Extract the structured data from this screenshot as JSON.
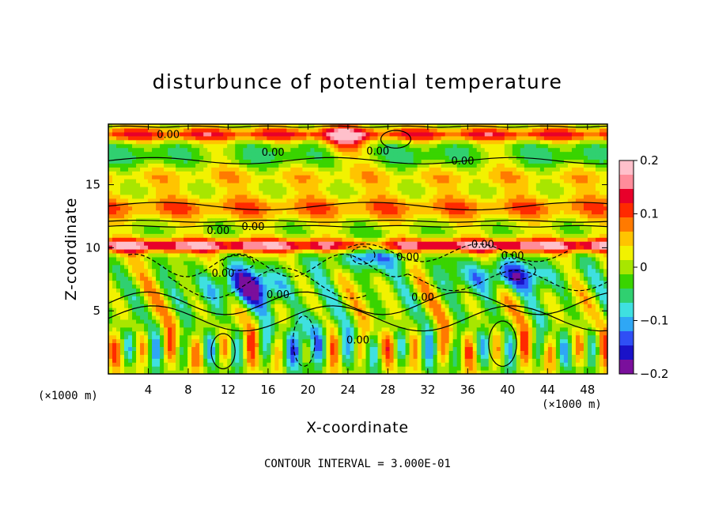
{
  "chart_data": {
    "type": "heatmap",
    "title": "disturbunce of potential temperature",
    "xlabel": "X-coordinate",
    "ylabel": "Z-coordinate",
    "x_unit": "(×1000 m)",
    "y_unit": "(×1000 m)",
    "xlim": [
      0,
      50
    ],
    "ylim": [
      0,
      19.8
    ],
    "x_ticks": [
      4,
      8,
      12,
      16,
      20,
      24,
      28,
      32,
      36,
      40,
      44,
      48
    ],
    "y_ticks": [
      5,
      10,
      15
    ],
    "colorbar": {
      "range": [
        -0.2,
        0.2
      ],
      "ticks": [
        {
          "value": 0.2,
          "label": "0.2"
        },
        {
          "value": 0.1,
          "label": "0.1"
        },
        {
          "value": 0,
          "label": "0"
        },
        {
          "value": -0.1,
          "label": "−0.1"
        },
        {
          "value": -0.2,
          "label": "−0.2"
        }
      ],
      "colors": [
        "#7a0f9c",
        "#1a12c8",
        "#2f4ff5",
        "#2fa7f5",
        "#3fe0e0",
        "#30d070",
        "#39d400",
        "#a8e600",
        "#f2f200",
        "#ffc400",
        "#ff7a00",
        "#ff2a00",
        "#e8002a",
        "#ff8c9a",
        "#ffc0cb"
      ]
    },
    "contour_interval_text": "CONTOUR INTERVAL = 3.000E-01",
    "contour_labels": [
      "0.00",
      "0.00",
      "0.00",
      "0.00",
      "0.00",
      "0.00",
      "0.00",
      "0.00",
      "0.00",
      "0.00",
      "0.00",
      "0.00",
      "0.00"
    ]
  }
}
